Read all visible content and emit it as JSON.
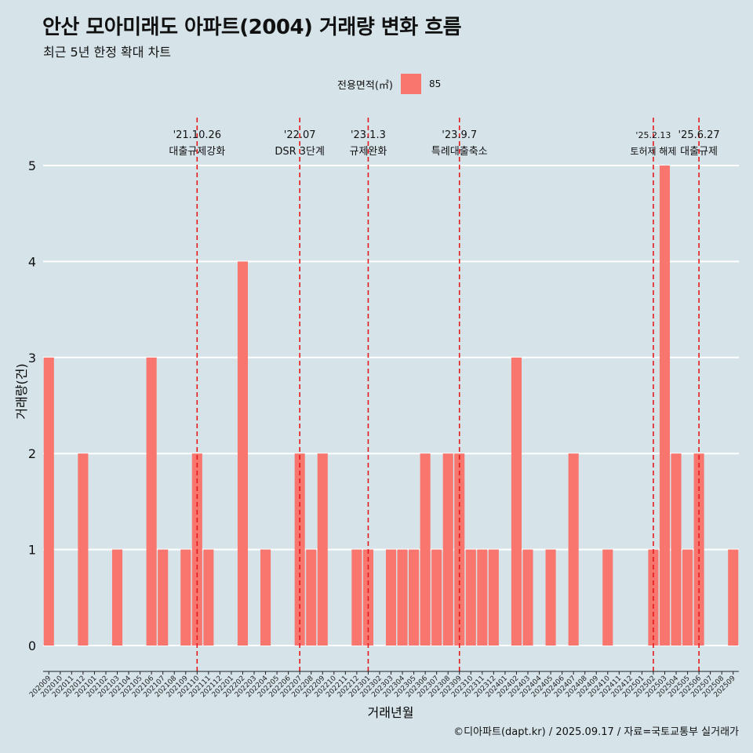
{
  "header": {
    "title": "안산 모아미래도 아파트(2004) 거래량 변화 흐름",
    "subtitle": "최근 5년 한정 확대 차트"
  },
  "legend": {
    "title": "전용면적(㎡)",
    "items": [
      {
        "label": "85",
        "color": "#f8766d"
      }
    ]
  },
  "caption": "©디아파트(dapt.kr) / 2025.09.17 / 자료=국토교통부 실거래가",
  "colors": {
    "background": "#d6e4ea",
    "bar": "#f8766d",
    "gridline": "#ffffff",
    "event_line": "#e41a1c"
  },
  "chart_data": {
    "type": "bar",
    "xlabel": "거래년월",
    "ylabel": "거래량(건)",
    "ylim": [
      0,
      5
    ],
    "yticks": [
      0,
      1,
      2,
      3,
      4,
      5
    ],
    "grid": true,
    "legend_position": "top",
    "categories": [
      "202009",
      "202010",
      "202011",
      "202012",
      "202101",
      "202102",
      "202103",
      "202104",
      "202105",
      "202106",
      "202107",
      "202108",
      "202109",
      "202110",
      "202111",
      "202112",
      "202201",
      "202202",
      "202203",
      "202204",
      "202205",
      "202206",
      "202207",
      "202208",
      "202209",
      "202210",
      "202211",
      "202212",
      "202301",
      "202302",
      "202303",
      "202304",
      "202305",
      "202306",
      "202307",
      "202308",
      "202309",
      "202310",
      "202311",
      "202312",
      "202401",
      "202402",
      "202403",
      "202404",
      "202405",
      "202406",
      "202407",
      "202408",
      "202409",
      "202410",
      "202411",
      "202412",
      "202501",
      "202502",
      "202503",
      "202504",
      "202505",
      "202506",
      "202507",
      "202508",
      "202509"
    ],
    "series": [
      {
        "name": "85",
        "values": [
          3,
          0,
          0,
          2,
          0,
          0,
          1,
          0,
          0,
          3,
          1,
          0,
          1,
          2,
          1,
          0,
          0,
          4,
          0,
          1,
          0,
          0,
          2,
          1,
          2,
          0,
          0,
          1,
          1,
          0,
          1,
          1,
          1,
          2,
          1,
          2,
          2,
          1,
          1,
          1,
          0,
          3,
          1,
          0,
          1,
          0,
          2,
          0,
          0,
          1,
          0,
          0,
          0,
          1,
          5,
          2,
          1,
          2,
          0,
          0,
          1
        ]
      }
    ],
    "events": [
      {
        "date": "'21.10.26",
        "label": "대출규제강화",
        "category": "202110"
      },
      {
        "date": "'22.07",
        "label": "DSR 3단계",
        "category": "202207"
      },
      {
        "date": "'23.1.3",
        "label": "규제완화",
        "category": "202301"
      },
      {
        "date": "'23.9.7",
        "label": "특례대출축소",
        "category": "202309"
      },
      {
        "date": "'25.2.13",
        "label": "토허제 해제",
        "category": "202502"
      },
      {
        "date": "'25.6.27",
        "label": "대출규제",
        "category": "202506"
      }
    ]
  }
}
